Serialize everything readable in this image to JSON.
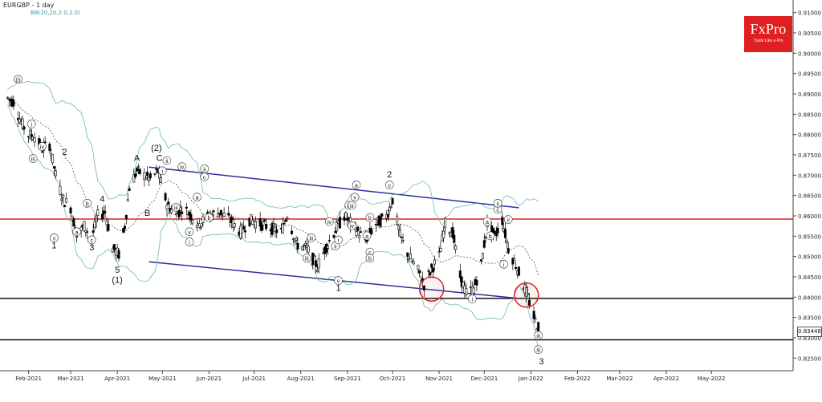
{
  "header": {
    "title": "EURGBP - 1 day",
    "indicator": "BB(20,20,2.0,2.0)"
  },
  "logo": {
    "name": "FxPro",
    "tagline": "Trade Like a Pro",
    "color": "#e02020"
  },
  "current_price_label": "0.83448",
  "colors": {
    "bull_candle": "#000000",
    "bear_candle": "#000000",
    "bollinger": "#6fb7a8",
    "moving_average": "#555555",
    "channel": "#2b2f9e",
    "resistance": "#e02020",
    "support": "#111111",
    "circle_marker": "#e02020"
  },
  "chart_data": {
    "type": "candlestick",
    "instrument": "EURGBP",
    "timeframe": "1 day",
    "x_ticks": [
      "Feb-2021",
      "Mar-2021",
      "Apr-2021",
      "May-2021",
      "Jun-2021",
      "Jul-2021",
      "Aug-2021",
      "Sep-2021",
      "Oct-2021",
      "Nov-2021",
      "Dec-2021",
      "Jan-2022",
      "Feb-2022",
      "Mar-2022",
      "Apr-2022",
      "May-2022"
    ],
    "y_ticks": [
      "0.91000",
      "0.90500",
      "0.90000",
      "0.89500",
      "0.89000",
      "0.88500",
      "0.88000",
      "0.87500",
      "0.87000",
      "0.86500",
      "0.86000",
      "0.85500",
      "0.85000",
      "0.84500",
      "0.84000",
      "0.83500",
      "0.83000",
      "0.82500"
    ],
    "ylim": [
      0.8225,
      0.9125
    ],
    "grid": false,
    "candles_close_path": [
      [
        "2021-01-18",
        0.889
      ],
      [
        "2021-01-22",
        0.888
      ],
      [
        "2021-01-27",
        0.883
      ],
      [
        "2021-02-01",
        0.88
      ],
      [
        "2021-02-05",
        0.8795
      ],
      [
        "2021-02-10",
        0.8765
      ],
      [
        "2021-02-15",
        0.8775
      ],
      [
        "2021-02-19",
        0.87
      ],
      [
        "2021-02-24",
        0.864
      ],
      [
        "2021-03-01",
        0.862
      ],
      [
        "2021-03-05",
        0.855
      ],
      [
        "2021-03-10",
        0.8575
      ],
      [
        "2021-03-15",
        0.8545
      ],
      [
        "2021-03-19",
        0.86
      ],
      [
        "2021-03-24",
        0.861
      ],
      [
        "2021-03-29",
        0.852
      ],
      [
        "2021-04-02",
        0.8505
      ],
      [
        "2021-04-06",
        0.8575
      ],
      [
        "2021-04-09",
        0.867
      ],
      [
        "2021-04-14",
        0.871
      ],
      [
        "2021-04-19",
        0.87
      ],
      [
        "2021-04-23",
        0.869
      ],
      [
        "2021-04-28",
        0.871
      ],
      [
        "2021-05-04",
        0.863
      ],
      [
        "2021-05-10",
        0.86
      ],
      [
        "2021-05-14",
        0.862
      ],
      [
        "2021-05-19",
        0.8605
      ],
      [
        "2021-05-25",
        0.858
      ],
      [
        "2021-06-01",
        0.86
      ],
      [
        "2021-06-08",
        0.861
      ],
      [
        "2021-06-15",
        0.859
      ],
      [
        "2021-06-22",
        0.856
      ],
      [
        "2021-06-28",
        0.859
      ],
      [
        "2021-07-05",
        0.858
      ],
      [
        "2021-07-12",
        0.857
      ],
      [
        "2021-07-19",
        0.856
      ],
      [
        "2021-07-23",
        0.8605
      ],
      [
        "2021-07-29",
        0.853
      ],
      [
        "2021-08-05",
        0.852
      ],
      [
        "2021-08-12",
        0.8475
      ],
      [
        "2021-08-18",
        0.8525
      ],
      [
        "2021-08-24",
        0.8565
      ],
      [
        "2021-08-30",
        0.86
      ],
      [
        "2021-09-06",
        0.857
      ],
      [
        "2021-09-13",
        0.854
      ],
      [
        "2021-09-20",
        0.858
      ],
      [
        "2021-09-27",
        0.86
      ],
      [
        "2021-10-01",
        0.864
      ],
      [
        "2021-10-06",
        0.855
      ],
      [
        "2021-10-12",
        0.85
      ],
      [
        "2021-10-18",
        0.8465
      ],
      [
        "2021-10-22",
        0.843
      ],
      [
        "2021-10-27",
        0.847
      ],
      [
        "2021-11-01",
        0.85
      ],
      [
        "2021-11-05",
        0.858
      ],
      [
        "2021-11-10",
        0.856
      ],
      [
        "2021-11-15",
        0.845
      ],
      [
        "2021-11-19",
        0.841
      ],
      [
        "2021-11-24",
        0.842
      ],
      [
        "2021-11-29",
        0.848
      ],
      [
        "2021-12-03",
        0.858
      ],
      [
        "2021-12-08",
        0.855
      ],
      [
        "2021-12-13",
        0.859
      ],
      [
        "2021-12-17",
        0.852
      ],
      [
        "2021-12-22",
        0.848
      ],
      [
        "2021-12-27",
        0.843
      ],
      [
        "2021-12-30",
        0.84
      ],
      [
        "2022-01-04",
        0.834
      ],
      [
        "2022-01-07",
        0.832
      ]
    ],
    "annotations": [
      {
        "label": "(i)",
        "date": "2021-01-25",
        "price": 0.893
      },
      {
        "label": "i",
        "date": "2021-02-03",
        "price": 0.882
      },
      {
        "label": "iv",
        "date": "2021-02-10",
        "price": 0.8765
      },
      {
        "label": "iii",
        "date": "2021-02-04",
        "price": 0.8735
      },
      {
        "label": "2",
        "date": "2021-02-25",
        "price": 0.875
      },
      {
        "label": "v",
        "date": "2021-02-18",
        "price": 0.854
      },
      {
        "label": "1",
        "date": "2021-02-18",
        "price": 0.852
      },
      {
        "label": "b",
        "date": "2021-03-12",
        "price": 0.8625
      },
      {
        "label": "a",
        "date": "2021-03-05",
        "price": 0.8555
      },
      {
        "label": "c",
        "date": "2021-03-15",
        "price": 0.8535
      },
      {
        "label": "3",
        "date": "2021-03-15",
        "price": 0.8515
      },
      {
        "label": "4",
        "date": "2021-03-22",
        "price": 0.8635
      },
      {
        "label": "5",
        "date": "2021-04-01",
        "price": 0.846
      },
      {
        "label": "(1)",
        "date": "2021-04-01",
        "price": 0.8435
      },
      {
        "label": "A",
        "date": "2021-04-14",
        "price": 0.8735
      },
      {
        "label": "B",
        "date": "2021-04-21",
        "price": 0.86
      },
      {
        "label": "(2)",
        "date": "2021-04-27",
        "price": 0.876
      },
      {
        "label": "C",
        "date": "2021-04-29",
        "price": 0.8735
      },
      {
        "label": "ii",
        "date": "2021-05-04",
        "price": 0.873
      },
      {
        "label": "i",
        "date": "2021-05-01",
        "price": 0.8705
      },
      {
        "label": "iv",
        "date": "2021-05-14",
        "price": 0.8715
      },
      {
        "label": "iii",
        "date": "2021-05-10",
        "price": 0.8615
      },
      {
        "label": "v",
        "date": "2021-05-19",
        "price": 0.8555
      },
      {
        "label": "i",
        "date": "2021-05-19",
        "price": 0.853
      },
      {
        "label": "ii",
        "date": "2021-05-29",
        "price": 0.871
      },
      {
        "label": "c",
        "date": "2021-05-29",
        "price": 0.869
      },
      {
        "label": "a",
        "date": "2021-05-24",
        "price": 0.864
      },
      {
        "label": "b",
        "date": "2021-06-01",
        "price": 0.859
      },
      {
        "label": "iv",
        "date": "2021-08-20",
        "price": 0.858
      },
      {
        "label": "iii",
        "date": "2021-08-08",
        "price": 0.854
      },
      {
        "label": "ii",
        "date": "2021-08-24",
        "price": 0.852
      },
      {
        "label": "i",
        "date": "2021-08-26",
        "price": 0.8535
      },
      {
        "label": "iii",
        "date": "2021-08-05",
        "price": 0.849
      },
      {
        "label": "v",
        "date": "2021-08-26",
        "price": 0.8435
      },
      {
        "label": "1",
        "date": "2021-08-26",
        "price": 0.8415
      },
      {
        "label": "iii",
        "date": "2021-09-02",
        "price": 0.862
      },
      {
        "label": "iv",
        "date": "2021-09-04",
        "price": 0.857
      },
      {
        "label": "v",
        "date": "2021-09-06",
        "price": 0.864
      },
      {
        "label": "a",
        "date": "2021-09-07",
        "price": 0.867
      },
      {
        "label": "iii",
        "date": "2021-09-04",
        "price": 0.862
      },
      {
        "label": "b",
        "date": "2021-09-16",
        "price": 0.859
      },
      {
        "label": "a",
        "date": "2021-09-14",
        "price": 0.8545
      },
      {
        "label": "c",
        "date": "2021-09-16",
        "price": 0.8505
      },
      {
        "label": "b",
        "date": "2021-09-16",
        "price": 0.849
      },
      {
        "label": "2",
        "date": "2021-09-29",
        "price": 0.8695
      },
      {
        "label": "c",
        "date": "2021-09-29",
        "price": 0.867
      },
      {
        "label": "i",
        "date": "2021-11-23",
        "price": 0.839
      },
      {
        "label": "a",
        "date": "2021-12-03",
        "price": 0.858
      },
      {
        "label": "b",
        "date": "2021-12-05",
        "price": 0.8545
      },
      {
        "label": "c",
        "date": "2021-12-10",
        "price": 0.861
      },
      {
        "label": "ii",
        "date": "2021-12-10",
        "price": 0.8625
      },
      {
        "label": "ii",
        "date": "2021-12-17",
        "price": 0.8585
      },
      {
        "label": "i",
        "date": "2021-12-14",
        "price": 0.8475
      },
      {
        "label": "iii",
        "date": "2022-01-06",
        "price": 0.83
      },
      {
        "label": "iii",
        "date": "2022-01-06",
        "price": 0.8265
      },
      {
        "label": "3",
        "date": "2022-01-08",
        "price": 0.8235
      }
    ],
    "lines": {
      "resistance": 0.8592,
      "support_1": 0.8397,
      "support_2": 0.8295,
      "channel_upper": [
        [
          "2021-04-22",
          0.872
        ],
        [
          "2021-12-24",
          0.862
        ]
      ],
      "channel_lower": [
        [
          "2021-04-22",
          0.8487
        ],
        [
          "2021-12-24",
          0.8397
        ]
      ]
    },
    "circles": [
      [
        "2021-10-27",
        0.842
      ],
      [
        "2021-12-29",
        0.8405
      ]
    ]
  }
}
